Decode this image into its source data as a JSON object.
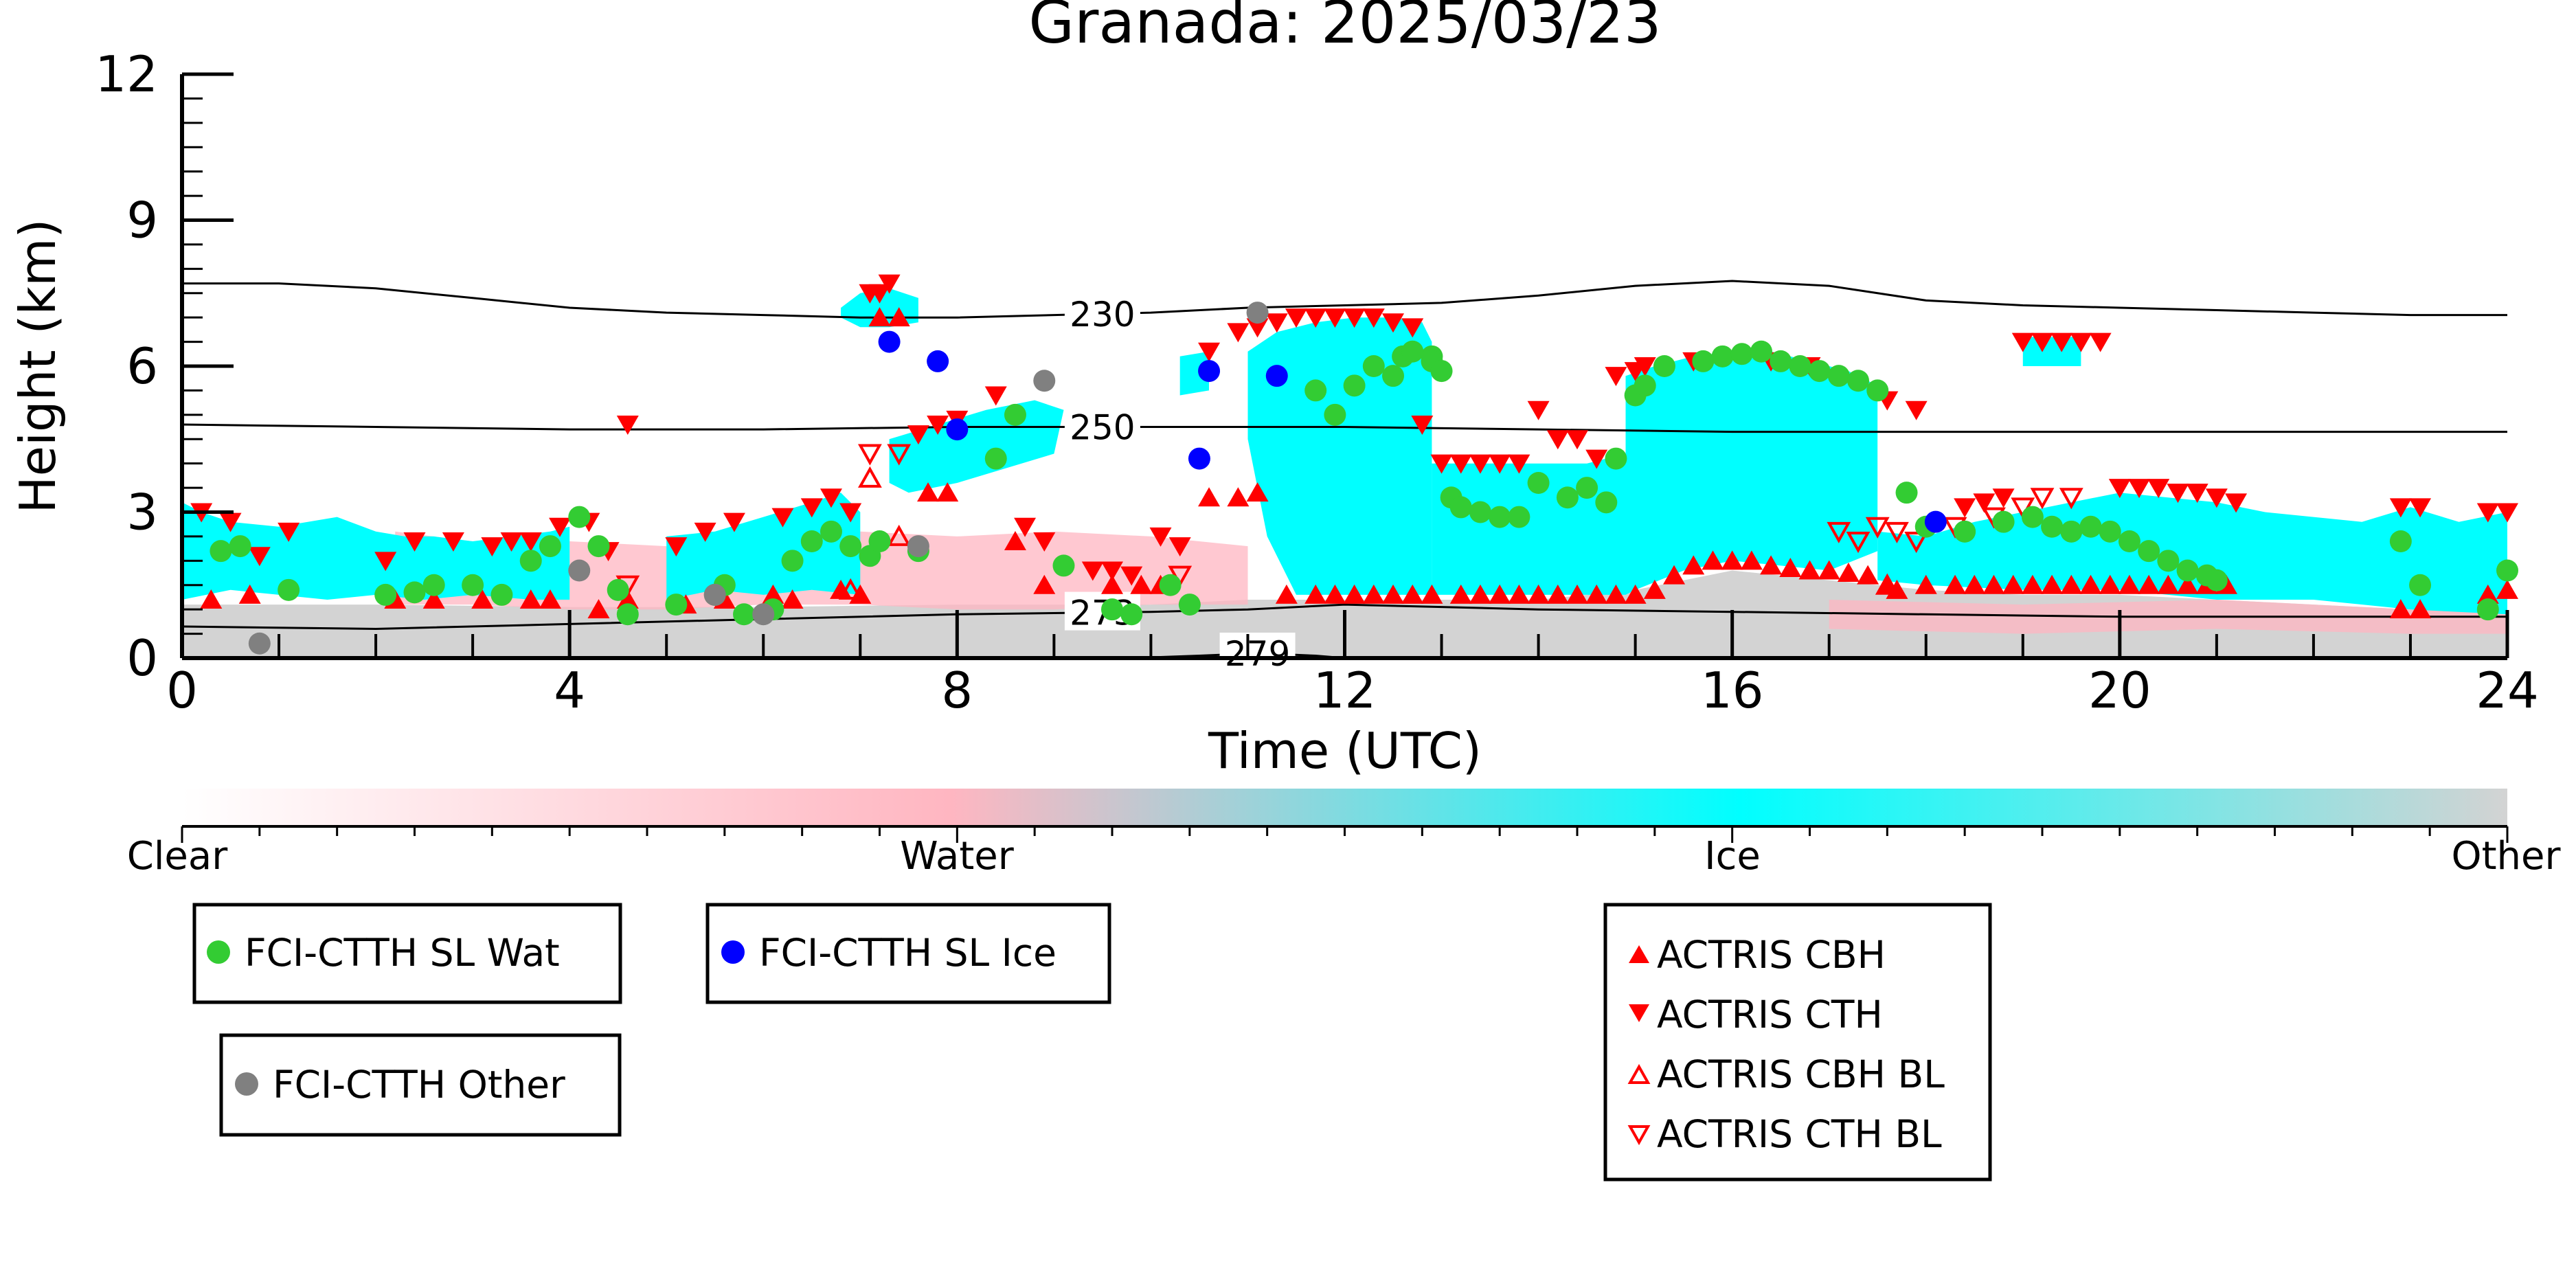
{
  "chart_data": {
    "type": "scatter",
    "title": "Granada: 2025/03/23",
    "xlabel": "Time (UTC)",
    "ylabel": "Height (km)",
    "xlim": [
      0,
      24
    ],
    "ylim": [
      0,
      12
    ],
    "x_ticks": [
      0,
      4,
      8,
      12,
      16,
      20,
      24
    ],
    "y_ticks": [
      0,
      3,
      6,
      9,
      12
    ],
    "grid": false,
    "legend_placement": "below",
    "colorbar": {
      "labels": [
        "Clear",
        "Water",
        "Ice",
        "Other"
      ],
      "colors": [
        "#ffffff",
        "#ffb6c1",
        "#00ffff",
        "#d3d3d3"
      ]
    },
    "isotherms": [
      {
        "label": "230",
        "label_x": 9.5,
        "x": [
          0,
          1,
          2,
          3,
          4,
          5,
          6,
          7,
          8,
          9,
          10,
          11,
          12,
          13,
          14,
          15,
          16,
          17,
          18,
          19,
          20,
          21,
          22,
          23,
          24
        ],
        "y": [
          7.7,
          7.7,
          7.6,
          7.4,
          7.2,
          7.1,
          7.05,
          7.0,
          7.0,
          7.05,
          7.1,
          7.2,
          7.25,
          7.3,
          7.45,
          7.65,
          7.75,
          7.65,
          7.35,
          7.25,
          7.2,
          7.15,
          7.1,
          7.05,
          7.05
        ]
      },
      {
        "label": "250",
        "label_x": 9.5,
        "x": [
          0,
          2,
          4,
          6,
          8,
          10,
          12,
          14,
          16,
          18,
          20,
          22,
          24
        ],
        "y": [
          4.8,
          4.75,
          4.7,
          4.7,
          4.75,
          4.75,
          4.75,
          4.7,
          4.65,
          4.65,
          4.65,
          4.65,
          4.65
        ]
      },
      {
        "label": "273",
        "label_x": 9.5,
        "x": [
          0,
          2,
          4,
          6,
          8,
          10,
          11,
          12,
          13,
          14,
          16,
          18,
          20,
          22,
          24
        ],
        "y": [
          0.65,
          0.6,
          0.7,
          0.8,
          0.9,
          0.95,
          1.0,
          1.1,
          1.05,
          1.0,
          0.95,
          0.9,
          0.85,
          0.85,
          0.85
        ]
      },
      {
        "label": "279",
        "label_x": 11.1,
        "x": [
          9.8,
          10.5,
          11.1,
          11.7,
          12.0
        ],
        "y": [
          0.0,
          0.05,
          0.1,
          0.05,
          0.0
        ]
      }
    ],
    "series": [
      {
        "name": "FCI-CTTH SL Wat",
        "color": "#33cc33",
        "marker": "circle",
        "x": [
          0.4,
          0.6,
          1.1,
          2.1,
          2.4,
          2.6,
          3.0,
          3.3,
          3.6,
          3.8,
          4.1,
          4.3,
          4.5,
          4.6,
          5.1,
          5.5,
          5.6,
          5.8,
          6.1,
          6.3,
          6.5,
          6.7,
          6.9,
          7.1,
          7.2,
          7.6,
          8.4,
          8.6,
          9.1,
          9.6,
          9.8,
          10.2,
          10.4,
          11.7,
          11.9,
          12.1,
          12.3,
          12.5,
          12.6,
          12.9,
          13.1,
          13.2,
          13.4,
          13.6,
          13.8,
          14.0,
          14.3,
          14.5,
          14.7,
          14.8,
          15.0,
          15.1,
          15.3,
          15.7,
          15.9,
          16.1,
          16.3,
          16.5,
          16.7,
          16.9,
          17.1,
          17.3,
          17.5,
          17.8,
          18.0,
          18.4,
          18.8,
          19.1,
          19.3,
          19.5,
          19.7,
          19.9,
          20.1,
          20.3,
          20.5,
          20.7,
          20.9,
          21.0,
          22.9,
          23.1,
          23.8,
          24.0,
          12.7,
          12.9,
          13.0
        ],
        "y": [
          2.2,
          2.3,
          1.4,
          1.3,
          1.35,
          1.5,
          1.5,
          1.3,
          2.0,
          2.3,
          2.9,
          2.3,
          1.4,
          0.9,
          1.1,
          1.3,
          1.5,
          0.9,
          1.0,
          2.0,
          2.4,
          2.6,
          2.3,
          2.1,
          2.4,
          2.2,
          4.1,
          5.0,
          1.9,
          1.0,
          0.9,
          1.5,
          1.1,
          5.5,
          5.0,
          5.6,
          6.0,
          5.8,
          6.2,
          6.2,
          3.3,
          3.1,
          3.0,
          2.9,
          2.9,
          3.6,
          3.3,
          3.5,
          3.2,
          4.1,
          5.4,
          5.6,
          6.0,
          6.1,
          6.2,
          6.25,
          6.3,
          6.1,
          6.0,
          5.9,
          5.8,
          5.7,
          5.5,
          3.4,
          2.7,
          2.6,
          2.8,
          2.9,
          2.7,
          2.6,
          2.7,
          2.6,
          2.4,
          2.2,
          2.0,
          1.8,
          1.7,
          1.6,
          2.4,
          1.5,
          1.0,
          1.8,
          6.3,
          6.1,
          5.9
        ]
      },
      {
        "name": "FCI-CTTH SL Ice",
        "color": "#0000ff",
        "marker": "circle",
        "x": [
          7.3,
          7.8,
          8.0,
          10.5,
          10.6,
          11.3,
          18.1
        ],
        "y": [
          6.5,
          6.1,
          4.7,
          4.1,
          5.9,
          5.8,
          2.8
        ]
      },
      {
        "name": "FCI-CTTH Other",
        "color": "#808080",
        "marker": "circle",
        "x": [
          0.8,
          4.1,
          5.5,
          6.0,
          7.6,
          8.9,
          11.1
        ],
        "y": [
          0.3,
          1.8,
          1.3,
          0.9,
          2.3,
          5.7,
          7.1
        ]
      },
      {
        "name": "ACTRIS CBH",
        "color": "#ff0000",
        "marker": "triangle-up",
        "x": [
          0.3,
          0.7,
          2.2,
          2.6,
          3.1,
          3.6,
          3.8,
          4.3,
          4.6,
          5.2,
          5.6,
          6.1,
          6.3,
          6.8,
          7.0,
          7.2,
          7.4,
          7.7,
          7.9,
          8.6,
          8.9,
          9.6,
          9.9,
          10.1,
          10.6,
          10.9,
          11.1,
          11.4,
          11.7,
          11.9,
          12.1,
          12.3,
          12.5,
          12.7,
          12.9,
          13.2,
          13.4,
          13.6,
          13.8,
          14.0,
          14.2,
          14.4,
          14.6,
          14.8,
          15.0,
          15.2,
          15.4,
          15.6,
          15.8,
          16.0,
          16.2,
          16.4,
          16.6,
          16.8,
          17.0,
          17.2,
          17.4,
          17.6,
          17.7,
          18.0,
          18.3,
          18.5,
          18.7,
          18.9,
          19.1,
          19.3,
          19.5,
          19.7,
          19.9,
          20.1,
          20.3,
          20.5,
          20.7,
          20.9,
          21.1,
          22.9,
          23.1,
          23.8,
          24.0
        ],
        "y": [
          1.2,
          1.3,
          1.2,
          1.2,
          1.2,
          1.2,
          1.2,
          1.0,
          1.2,
          1.1,
          1.2,
          1.3,
          1.2,
          1.4,
          1.3,
          7.0,
          7.0,
          3.4,
          3.4,
          2.4,
          1.5,
          1.5,
          1.5,
          1.5,
          3.3,
          3.3,
          3.4,
          1.3,
          1.3,
          1.3,
          1.3,
          1.3,
          1.3,
          1.3,
          1.3,
          1.3,
          1.3,
          1.3,
          1.3,
          1.3,
          1.3,
          1.3,
          1.3,
          1.3,
          1.3,
          1.4,
          1.7,
          1.9,
          2.0,
          2.0,
          2.0,
          1.9,
          1.85,
          1.8,
          1.8,
          1.75,
          1.7,
          1.5,
          1.4,
          1.5,
          1.5,
          1.5,
          1.5,
          1.5,
          1.5,
          1.5,
          1.5,
          1.5,
          1.5,
          1.5,
          1.5,
          1.5,
          1.5,
          1.5,
          1.5,
          1.0,
          1.0,
          1.3,
          1.4
        ]
      },
      {
        "name": "ACTRIS CTH",
        "color": "#ff0000",
        "marker": "triangle-down",
        "x": [
          0.2,
          0.5,
          0.8,
          1.1,
          2.1,
          2.4,
          2.8,
          3.2,
          3.4,
          3.6,
          3.9,
          4.2,
          4.4,
          4.6,
          5.1,
          5.4,
          5.7,
          6.2,
          6.5,
          6.7,
          6.9,
          7.1,
          7.2,
          7.3,
          7.6,
          7.8,
          8.0,
          8.4,
          8.7,
          8.9,
          9.4,
          9.6,
          9.8,
          10.1,
          10.3,
          10.6,
          10.9,
          11.1,
          11.3,
          11.5,
          11.7,
          11.9,
          12.1,
          12.3,
          12.5,
          12.7,
          12.8,
          13.0,
          13.2,
          13.4,
          13.6,
          13.8,
          14.0,
          14.2,
          14.4,
          14.6,
          14.8,
          15.0,
          15.1,
          15.6,
          16.4,
          16.8,
          17.6,
          17.9,
          18.4,
          18.6,
          18.8,
          19.0,
          19.2,
          19.4,
          19.6,
          19.8,
          20.0,
          20.2,
          20.4,
          20.6,
          20.8,
          21.0,
          21.2,
          22.9,
          23.1,
          23.8,
          24.0
        ],
        "y": [
          3.0,
          2.8,
          2.1,
          2.6,
          2.0,
          2.4,
          2.4,
          2.3,
          2.4,
          2.4,
          2.7,
          2.8,
          2.2,
          4.8,
          2.3,
          2.6,
          2.8,
          2.9,
          3.1,
          3.3,
          3.0,
          7.5,
          7.5,
          7.7,
          4.6,
          4.8,
          4.9,
          5.4,
          2.7,
          2.4,
          1.8,
          1.8,
          1.7,
          2.5,
          2.3,
          6.3,
          6.7,
          6.8,
          6.9,
          7.0,
          7.0,
          7.0,
          7.0,
          7.0,
          6.9,
          6.8,
          4.8,
          4.0,
          4.0,
          4.0,
          4.0,
          4.0,
          5.1,
          4.5,
          4.5,
          4.1,
          5.8,
          5.9,
          6.0,
          6.1,
          6.1,
          6.0,
          5.3,
          5.1,
          3.1,
          3.2,
          3.3,
          6.5,
          6.5,
          6.5,
          6.5,
          6.5,
          3.5,
          3.5,
          3.5,
          3.4,
          3.4,
          3.3,
          3.2,
          3.1,
          3.1,
          3.0,
          3.0
        ]
      },
      {
        "name": "ACTRIS CBH BL",
        "color": "#ff0000",
        "marker": "triangle-up-open",
        "x": [
          6.9,
          7.1,
          7.4,
          17.6
        ],
        "y": [
          1.4,
          3.7,
          2.5,
          1.5
        ]
      },
      {
        "name": "ACTRIS CTH BL",
        "color": "#ff0000",
        "marker": "triangle-down-open",
        "x": [
          4.6,
          7.1,
          7.4,
          10.3,
          17.1,
          17.3,
          17.5,
          17.7,
          17.9,
          18.3,
          18.7,
          19.0,
          19.2,
          19.5
        ],
        "y": [
          1.5,
          4.2,
          4.2,
          1.7,
          2.6,
          2.4,
          2.7,
          2.6,
          2.4,
          2.7,
          2.9,
          3.1,
          3.3,
          3.3
        ]
      }
    ],
    "cloud_regions_ice": [
      {
        "x": [
          0.0,
          0.2,
          0.5,
          1.0,
          1.6,
          2.0,
          2.3,
          2.6,
          3.0,
          3.4,
          3.8,
          4.0,
          4.0,
          3.6,
          3.0,
          2.5,
          2.0,
          1.5,
          1.0,
          0.5,
          0.0
        ],
        "y": [
          3.2,
          3.0,
          2.8,
          2.7,
          2.9,
          2.6,
          2.5,
          2.5,
          2.4,
          2.5,
          2.6,
          2.7,
          1.2,
          1.2,
          1.3,
          1.2,
          1.3,
          1.2,
          1.3,
          1.4,
          1.2
        ]
      },
      {
        "x": [
          5.0,
          5.5,
          6.0,
          6.5,
          6.8,
          7.0,
          7.0,
          6.5,
          6.0,
          5.5,
          5.0
        ],
        "y": [
          2.5,
          2.6,
          2.9,
          3.2,
          3.4,
          3.0,
          1.3,
          1.4,
          1.3,
          1.4,
          1.2
        ]
      },
      {
        "x": [
          6.8,
          7.0,
          7.3,
          7.6,
          7.6,
          7.3,
          7.0,
          6.8
        ],
        "y": [
          7.2,
          7.5,
          7.6,
          7.4,
          6.9,
          6.8,
          6.8,
          7.0
        ]
      },
      {
        "x": [
          7.3,
          7.8,
          8.3,
          8.8,
          9.1,
          9.0,
          8.5,
          8.0,
          7.5,
          7.3
        ],
        "y": [
          4.5,
          4.8,
          5.1,
          5.3,
          5.1,
          4.2,
          3.9,
          3.6,
          3.4,
          3.6
        ]
      },
      {
        "x": [
          10.3,
          10.6,
          10.6,
          10.3
        ],
        "y": [
          6.2,
          6.3,
          5.5,
          5.4
        ]
      },
      {
        "x": [
          11.0,
          11.3,
          11.7,
          12.1,
          12.5,
          12.8,
          12.9,
          12.9,
          12.0,
          11.5,
          11.2,
          11.0
        ],
        "y": [
          6.3,
          6.7,
          6.9,
          7.0,
          7.0,
          6.9,
          6.5,
          1.3,
          1.3,
          1.3,
          2.5,
          4.5
        ]
      },
      {
        "x": [
          12.9,
          13.5,
          14.0,
          14.5,
          14.9,
          14.9,
          14.5,
          14.0,
          13.5,
          12.9
        ],
        "y": [
          4.0,
          4.0,
          4.0,
          4.0,
          4.2,
          1.3,
          1.3,
          1.3,
          1.3,
          1.3
        ]
      },
      {
        "x": [
          14.9,
          15.2,
          15.6,
          16.0,
          16.4,
          16.8,
          17.2,
          17.5,
          17.5,
          17.0,
          16.5,
          16.0,
          15.5,
          15.0,
          14.9
        ],
        "y": [
          5.8,
          6.0,
          6.2,
          6.3,
          6.3,
          6.1,
          5.9,
          5.6,
          2.2,
          1.8,
          1.9,
          2.0,
          1.8,
          1.4,
          1.3
        ]
      },
      {
        "x": [
          17.5,
          18.0,
          18.5,
          19.0,
          19.5,
          20.0,
          20.5,
          21.0,
          21.5,
          22.5,
          23.0,
          23.5,
          24.0,
          24.0,
          23.0,
          22.0,
          21.0,
          20.0,
          19.0,
          18.0,
          17.5
        ],
        "y": [
          2.6,
          2.5,
          2.8,
          3.0,
          3.2,
          3.4,
          3.3,
          3.2,
          3.0,
          2.8,
          3.1,
          2.8,
          3.0,
          0.9,
          1.0,
          1.2,
          1.2,
          1.4,
          1.4,
          1.5,
          1.6
        ]
      },
      {
        "x": [
          19.0,
          19.6,
          19.6,
          19.0
        ],
        "y": [
          6.6,
          6.6,
          6.0,
          6.0
        ]
      }
    ],
    "cloud_regions_water": [
      {
        "x": [
          2.2,
          3.0,
          4.0,
          5.0,
          6.0,
          7.0,
          8.0,
          9.0,
          10.0,
          11.0,
          11.0,
          10.0,
          9.0,
          8.0,
          7.0,
          6.0,
          5.0,
          4.0,
          3.0,
          2.2
        ],
        "y": [
          2.6,
          2.4,
          2.4,
          2.3,
          2.4,
          2.6,
          2.5,
          2.6,
          2.5,
          2.3,
          1.1,
          1.1,
          1.0,
          1.0,
          1.1,
          1.1,
          1.0,
          1.0,
          1.1,
          1.1
        ]
      },
      {
        "x": [
          17.0,
          19.0,
          21.0,
          23.0,
          24.0,
          24.0,
          23.0,
          21.0,
          19.0,
          17.0
        ],
        "y": [
          1.2,
          1.1,
          1.2,
          1.0,
          1.0,
          0.5,
          0.5,
          0.6,
          0.5,
          0.6
        ]
      }
    ],
    "other_region": {
      "x": [
        0.0,
        2.0,
        4.0,
        6.0,
        8.0,
        10.0,
        11.0,
        12.0,
        13.0,
        14.0,
        15.0,
        15.5,
        16.0,
        16.5,
        17.0,
        18.0,
        19.0,
        20.0,
        21.0,
        22.0,
        23.0,
        24.0
      ],
      "y": [
        1.1,
        1.1,
        1.05,
        1.05,
        1.1,
        1.1,
        1.2,
        1.2,
        1.2,
        1.2,
        1.4,
        1.6,
        1.8,
        1.7,
        1.6,
        1.4,
        1.3,
        1.3,
        1.2,
        1.1,
        1.0,
        1.0
      ]
    }
  }
}
